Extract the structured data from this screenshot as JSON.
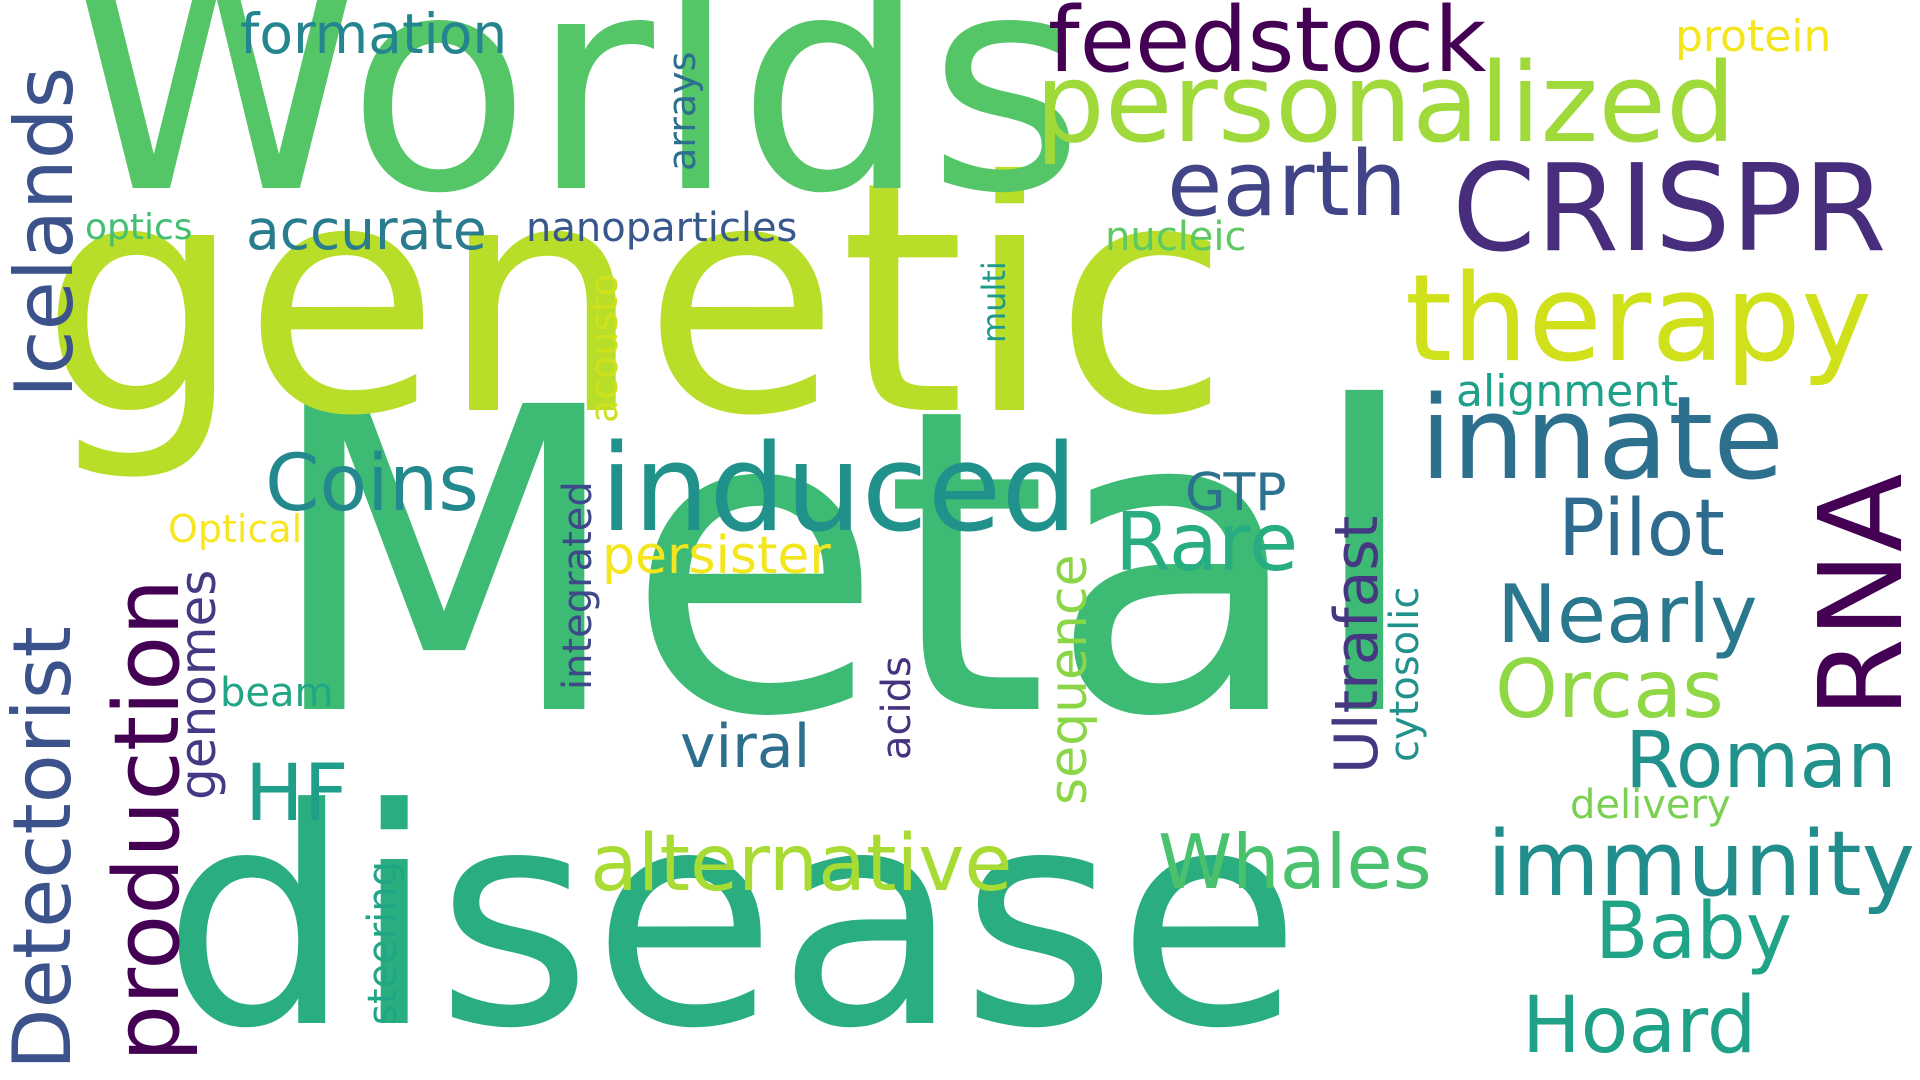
{
  "words": {
    "metal": "Metal",
    "genetic": "genetic",
    "disease": "disease",
    "worlds": "Worlds",
    "personalized": "personalized",
    "crispr": "CRISPR",
    "therapy": "therapy",
    "innate": "innate",
    "rna": "RNA",
    "induced": "induced",
    "feedstock": "feedstock",
    "earth": "earth",
    "icelands": "Icelands",
    "detectorist": "Detectorist",
    "production": "production",
    "formation": "formation",
    "arrays": "arrays",
    "protein": "protein",
    "accurate": "accurate",
    "nanoparticles": "nanoparticles",
    "optics": "optics",
    "multi": "multi",
    "nucleic": "nucleic",
    "acousto": "acousto",
    "alignment": "alignment",
    "coins": "Coins",
    "gtp": "GTP",
    "rare": "Rare",
    "pilot": "Pilot",
    "nearly": "Nearly",
    "orcas": "Orcas",
    "roman": "Roman",
    "optical": "Optical",
    "persister": "persister",
    "integrated": "integrated",
    "genomes": "genomes",
    "beam": "beam",
    "hf": "HF",
    "viral": "viral",
    "acids": "acids",
    "sequence": "sequence",
    "ultrafast": "Ultrafast",
    "cytosolic": "cytosolic",
    "alternative": "alternative",
    "whales": "Whales",
    "immunity": "immunity",
    "delivery": "delivery",
    "baby": "Baby",
    "hoard": "Hoard",
    "steering": "steering"
  },
  "colors": {
    "purple_dark": "#440154",
    "purple": "#482878",
    "indigo": "#3e4989",
    "blue": "#31688e",
    "teal_dark": "#26828e",
    "teal": "#1f9e89",
    "green_teal": "#27ad81",
    "green": "#35b779",
    "green_light": "#6ece58",
    "lime": "#b5de2b",
    "yellow": "#fde725"
  }
}
